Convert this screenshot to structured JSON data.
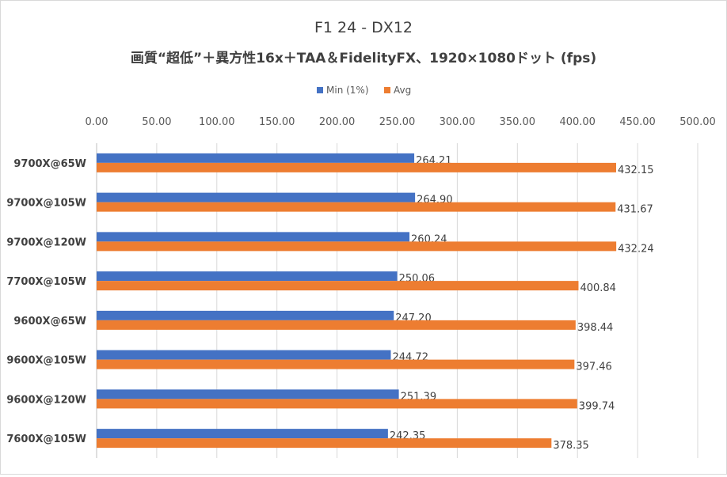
{
  "chart_data": {
    "type": "bar",
    "orientation": "horizontal",
    "title": "F1 24 - DX12",
    "subtitle": "画質“超低”＋異方性16x＋TAA＆FidelityFX、1920×1080ドット (fps)",
    "categories": [
      "9700X@65W",
      "9700X@105W",
      "9700X@120W",
      "7700X@105W",
      "9600X@65W",
      "9600X@105W",
      "9600X@120W",
      "7600X@105W"
    ],
    "series": [
      {
        "name": "Min (1%)",
        "color": "#4472c4",
        "values": [
          264.21,
          264.9,
          260.24,
          250.06,
          247.2,
          244.72,
          251.39,
          242.35
        ]
      },
      {
        "name": "Avg",
        "color": "#ed7d31",
        "values": [
          432.15,
          431.67,
          432.24,
          400.84,
          398.44,
          397.46,
          399.74,
          378.35
        ]
      }
    ],
    "value_labels": {
      "Min (1%)": [
        "264.21",
        "264.90",
        "260.24",
        "250.06",
        "247.20",
        "244.72",
        "251.39",
        "242.35"
      ],
      "Avg": [
        "432.15",
        "431.67",
        "432.24",
        "400.84",
        "398.44",
        "397.46",
        "399.74",
        "378.35"
      ]
    },
    "xlim": [
      0,
      500
    ],
    "xticks": [
      "0.00",
      "50.00",
      "100.00",
      "150.00",
      "200.00",
      "250.00",
      "300.00",
      "350.00",
      "400.00",
      "450.00",
      "500.00"
    ],
    "xlabel": "",
    "ylabel": "",
    "grid": true,
    "legend_position": "top",
    "axis_position": "top"
  }
}
